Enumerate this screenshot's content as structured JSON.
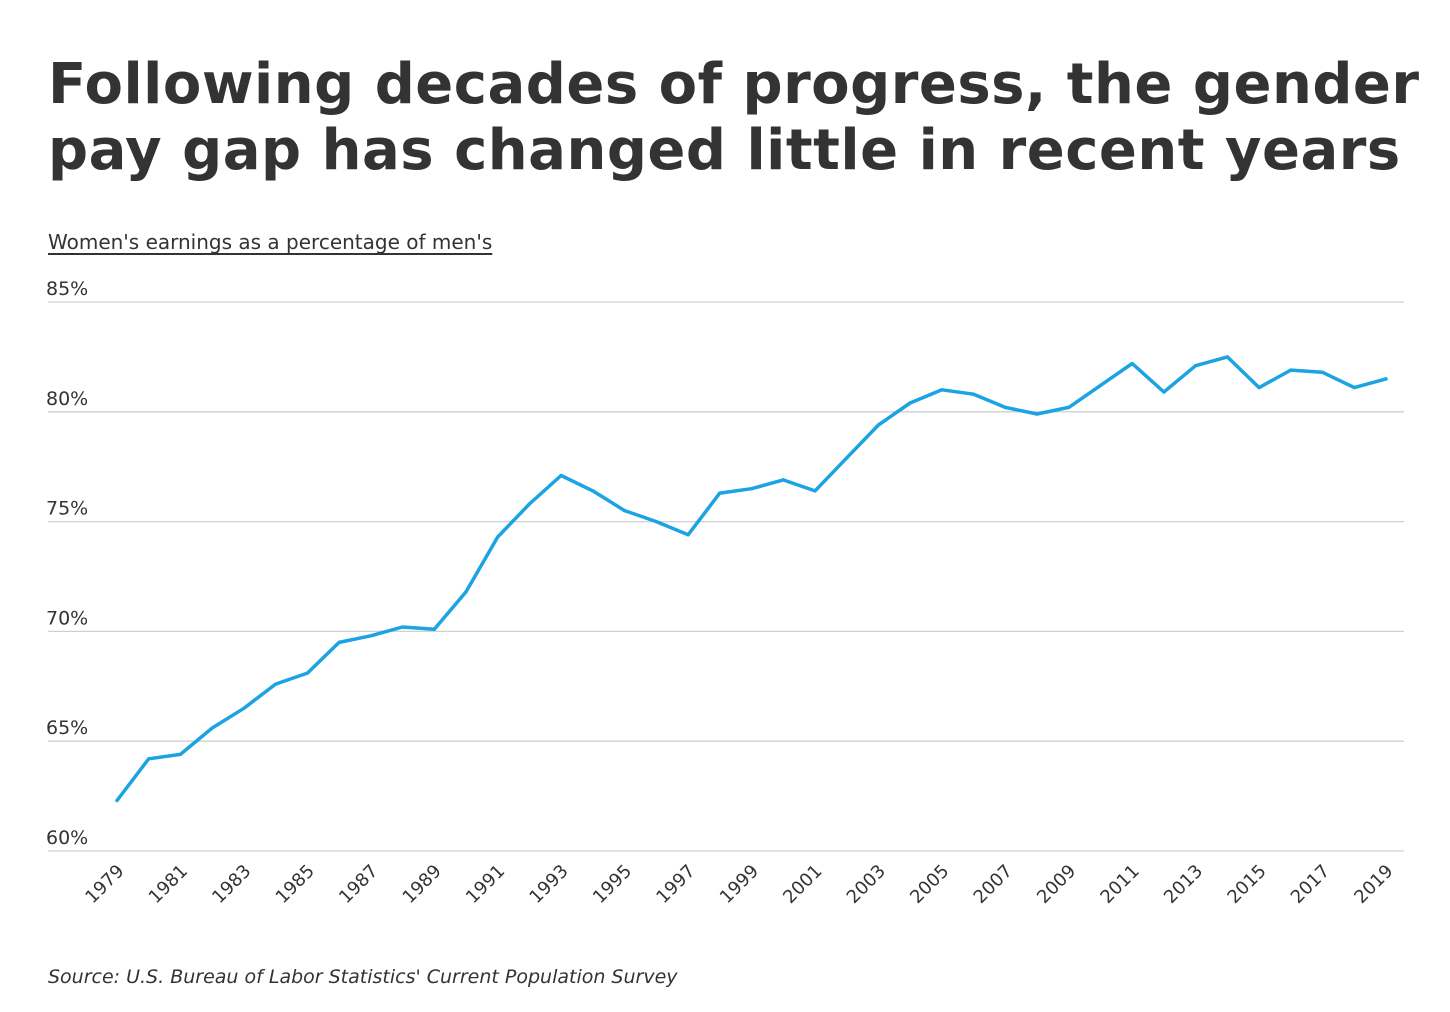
{
  "chart_data": {
    "type": "line",
    "title": "Following decades of progress, the gender pay gap has changed little in recent years",
    "subtitle": "Women's earnings as a percentage of men's",
    "source": "Source: U.S. Bureau of Labor Statistics' Current Population Survey",
    "x": [
      1979,
      1980,
      1981,
      1982,
      1983,
      1984,
      1985,
      1986,
      1987,
      1988,
      1989,
      1990,
      1991,
      1992,
      1993,
      1994,
      1995,
      1996,
      1997,
      1998,
      1999,
      2000,
      2001,
      2002,
      2003,
      2004,
      2005,
      2006,
      2007,
      2008,
      2009,
      2010,
      2011,
      2012,
      2013,
      2014,
      2015,
      2016,
      2017,
      2018,
      2019
    ],
    "series": [
      {
        "values": [
          62.3,
          64.2,
          64.4,
          65.6,
          66.5,
          67.6,
          68.1,
          69.5,
          69.8,
          70.2,
          70.1,
          71.8,
          74.3,
          75.8,
          77.1,
          76.4,
          75.5,
          75.0,
          74.4,
          76.3,
          76.5,
          76.9,
          76.4,
          77.9,
          79.4,
          80.4,
          81.0,
          80.8,
          80.2,
          79.9,
          80.2,
          81.2,
          82.2,
          80.9,
          82.1,
          82.5,
          81.1,
          81.9,
          81.8,
          81.1,
          81.5
        ],
        "color": "#1ca3e3"
      }
    ],
    "y_ticks": [
      60,
      65,
      70,
      75,
      80,
      85
    ],
    "y_tick_labels": [
      "60%",
      "65%",
      "70%",
      "75%",
      "80%",
      "85%"
    ],
    "x_tick_labels": [
      "1979",
      "1981",
      "1983",
      "1985",
      "1987",
      "1989",
      "1991",
      "1993",
      "1995",
      "1997",
      "1999",
      "2001",
      "2003",
      "2005",
      "2007",
      "2009",
      "2011",
      "2013",
      "2015",
      "2017",
      "2019"
    ],
    "ylim": [
      60,
      85
    ],
    "xlim": [
      1979,
      2019
    ],
    "grid": true,
    "legend": "none"
  },
  "colors": {
    "line": "#1ca3e3",
    "gridline": "#d0d0d0",
    "text": "#333333"
  }
}
